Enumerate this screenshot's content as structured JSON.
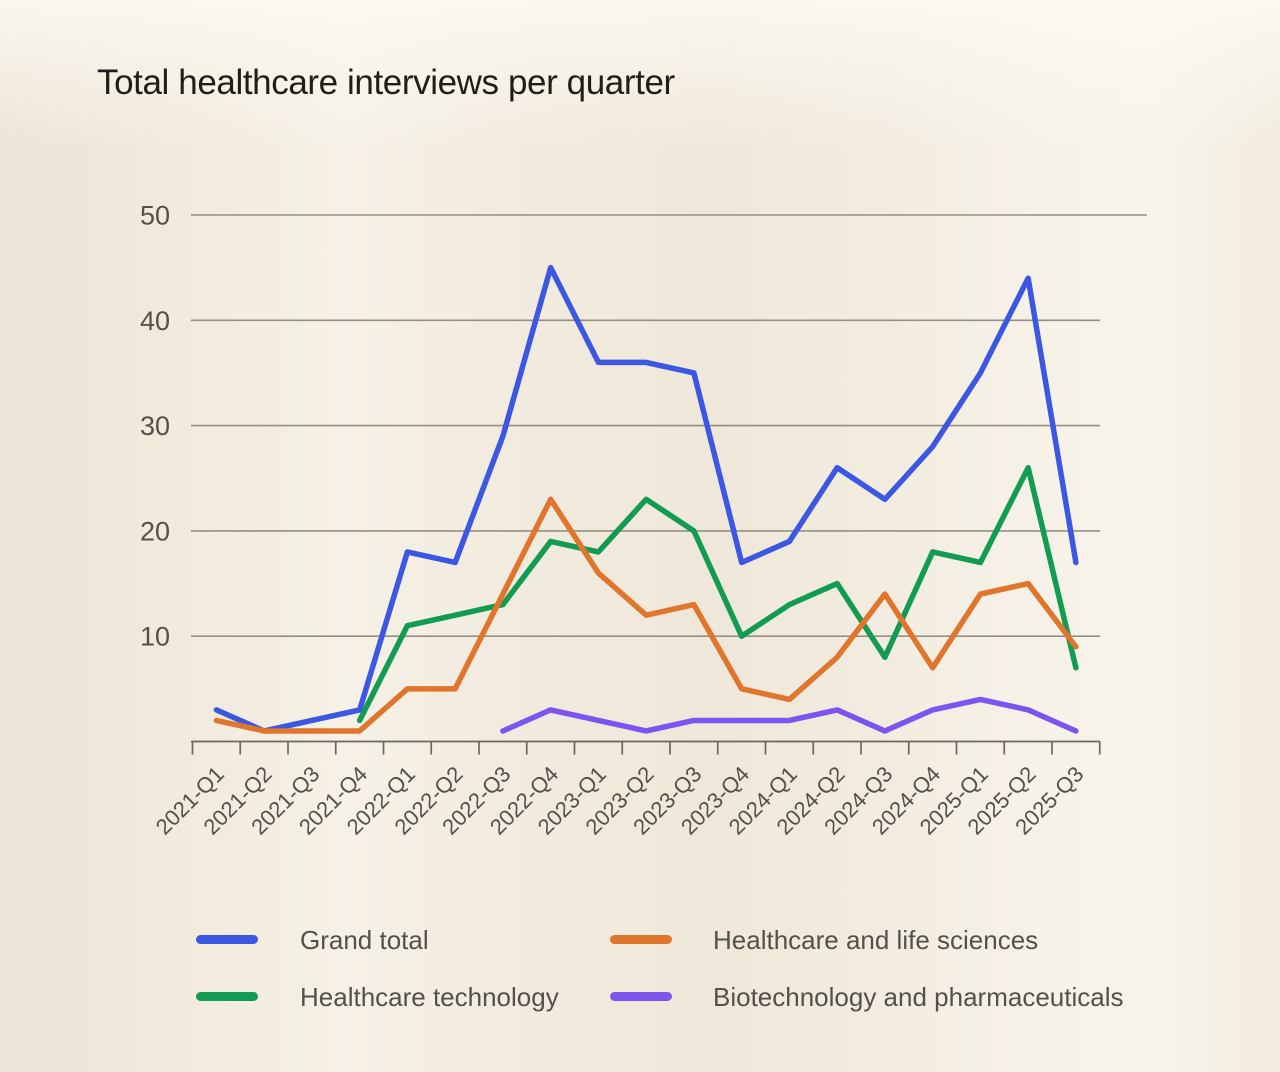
{
  "chart_data": {
    "type": "line",
    "title": "Total healthcare interviews per quarter",
    "xlabel": "",
    "ylabel": "",
    "categories": [
      "2021-Q1",
      "2021-Q2",
      "2021-Q3",
      "2021-Q4",
      "2022-Q1",
      "2022-Q2",
      "2022-Q3",
      "2022-Q4",
      "2023-Q1",
      "2023-Q2",
      "2023-Q3",
      "2023-Q4",
      "2024-Q1",
      "2024-Q2",
      "2024-Q3",
      "2024-Q4",
      "2025-Q1",
      "2025-Q2",
      "2025-Q3"
    ],
    "series": [
      {
        "name": "Grand total",
        "color": "#3c57e1",
        "values": [
          3,
          1,
          2,
          3,
          18,
          17,
          29,
          45,
          36,
          36,
          35,
          17,
          19,
          26,
          23,
          28,
          35,
          44,
          17
        ]
      },
      {
        "name": "Healthcare and life sciences",
        "color": "#e0752d",
        "values": [
          2,
          1,
          1,
          1,
          5,
          5,
          14,
          23,
          16,
          12,
          13,
          5,
          4,
          8,
          14,
          7,
          14,
          15,
          9
        ]
      },
      {
        "name": "Healthcare technology",
        "color": "#129c52",
        "values": [
          null,
          null,
          null,
          2,
          11,
          12,
          13,
          19,
          18,
          23,
          20,
          10,
          13,
          15,
          8,
          18,
          17,
          26,
          7
        ]
      },
      {
        "name": "Biotechnology and pharmaceuticals",
        "color": "#7c55f1",
        "values": [
          null,
          null,
          null,
          null,
          null,
          null,
          1,
          3,
          2,
          1,
          2,
          2,
          2,
          3,
          1,
          3,
          4,
          3,
          1
        ]
      }
    ],
    "y_ticks": [
      10,
      20,
      30,
      40,
      50
    ],
    "ylim": [
      0,
      50
    ],
    "grid": true,
    "legend_position": "bottom",
    "colors": {
      "background": "#f1eade",
      "gridline": "#95907f",
      "axis": "#6b675e",
      "tick_label": "#55514a",
      "title_text": "#201e1a",
      "legend_text": "#54504a"
    }
  }
}
